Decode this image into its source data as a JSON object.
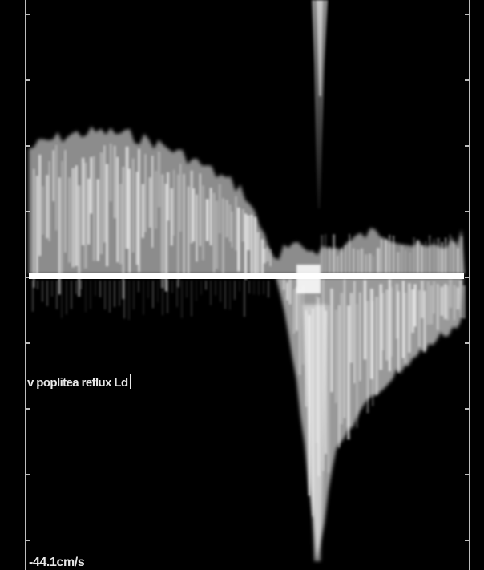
{
  "annotation": {
    "label": "v poplitea reflux Ld"
  },
  "scale": {
    "readout": "-44.1cm/s"
  },
  "colors": {
    "background": "#000000",
    "spectrum": "#ffffff",
    "baseline": "#ffffff",
    "frame": "#bdbdbd"
  }
}
